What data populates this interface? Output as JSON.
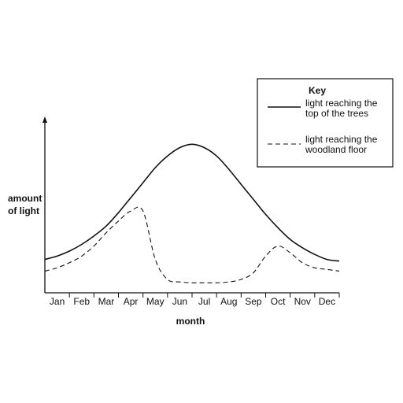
{
  "chart_data": {
    "type": "line",
    "xlabel": "month",
    "ylabel_lines": [
      "amount",
      "of light"
    ],
    "categories": [
      "Jan",
      "Feb",
      "Mar",
      "Apr",
      "May",
      "Jun",
      "Jul",
      "Aug",
      "Sep",
      "Oct",
      "Nov",
      "Dec"
    ],
    "y_ticks_shown": false,
    "grid": false,
    "legend": {
      "title": "Key",
      "placement": "top-right"
    },
    "series": [
      {
        "name": "light reaching the top of the trees",
        "name_lines": [
          "light reaching the",
          "top of the trees"
        ],
        "style": "solid",
        "x": [
          0,
          0.5,
          1,
          1.5,
          2,
          2.5,
          3,
          3.5,
          4,
          4.5,
          5,
          5.5,
          6,
          6.5,
          7,
          7.5,
          8,
          8.5,
          9,
          9.5,
          10,
          10.5,
          11,
          11.5,
          12
        ],
        "values": [
          20,
          22,
          25,
          29,
          34,
          40,
          48,
          57,
          66,
          75,
          82,
          87,
          89,
          87,
          82,
          74,
          65,
          56,
          47,
          39,
          32,
          27,
          23,
          20,
          19
        ]
      },
      {
        "name": "light reaching the woodland floor",
        "name_lines": [
          "light reaching the",
          "woodland floor"
        ],
        "style": "dashed",
        "x": [
          0,
          0.5,
          1,
          1.5,
          2,
          2.5,
          3,
          3.5,
          4,
          4.5,
          5,
          5.5,
          6,
          6.5,
          7,
          7.5,
          8,
          8.5,
          9,
          9.5,
          10,
          10.5,
          11,
          11.5,
          12
        ],
        "values": [
          13,
          15,
          18,
          22,
          28,
          36,
          43,
          49,
          49,
          20,
          8,
          6.5,
          6,
          6,
          6,
          6.5,
          8,
          12,
          22,
          28,
          24,
          18,
          15,
          14,
          13
        ]
      }
    ]
  }
}
